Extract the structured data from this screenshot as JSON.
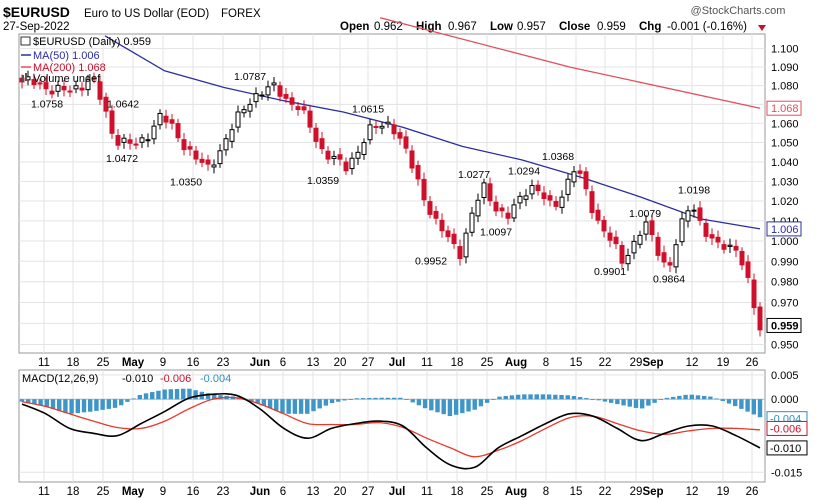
{
  "header": {
    "symbol": "$EURUSD",
    "title": "Euro to US Dollar (EOD)",
    "exchange": "FOREX",
    "date": "27-Sep-2022",
    "watermark": "@StockCharts.com",
    "open_label": "Open",
    "open": "0.962",
    "high_label": "High",
    "high": "0.967",
    "low_label": "Low",
    "low": "0.957",
    "close_label": "Close",
    "close": "0.959",
    "chg_label": "Chg",
    "chg": "-0.001 (-0.16%)"
  },
  "legend": {
    "price": "$EURUSD (Daily) 0.959",
    "ma50": "MA(50) 1.006",
    "ma200": "MA(200) 1.068",
    "volume": "Volume undef"
  },
  "macd_legend": {
    "label": "MACD(12,26,9)",
    "macd_value": "-0.010",
    "signal_value": "-0.006",
    "hist_value": "-0.004"
  },
  "colors": {
    "up": "#000000",
    "down": "#d0102a",
    "ma50": "#2b2f9e",
    "ma200": "#e0505a",
    "macd": "#000000",
    "signal": "#e8392b",
    "histogram": "#3d95c8",
    "grid": "#e3e3e3",
    "text_red": "#c4122e",
    "text_blue": "#2b2f9e",
    "text_cyan": "#2f8fc0"
  },
  "chart_data": [
    {
      "type": "candlestick",
      "title": "$EURUSD (Daily)",
      "ylim": [
        0.946,
        1.108
      ],
      "y_scale": "log",
      "y_ticks": [
        1.1,
        1.09,
        1.08,
        1.07,
        1.06,
        1.05,
        1.04,
        1.03,
        1.02,
        1.01,
        1.0,
        0.99,
        0.98,
        0.97,
        0.96,
        0.95
      ],
      "y_tick_labels": [
        "1.100",
        "1.090",
        "1.080",
        "1.070",
        "1.060",
        "1.050",
        "1.040",
        "1.030",
        "1.020",
        "1.010",
        "1.000",
        "0.990",
        "0.980",
        "0.970",
        "0.960",
        "0.950"
      ],
      "x_ticks": [
        {
          "label": "11",
          "bold": false
        },
        {
          "label": "18",
          "bold": false
        },
        {
          "label": "25",
          "bold": false
        },
        {
          "label": "May",
          "bold": true
        },
        {
          "label": "9",
          "bold": false
        },
        {
          "label": "16",
          "bold": false
        },
        {
          "label": "23",
          "bold": false
        },
        {
          "label": "Jun",
          "bold": true
        },
        {
          "label": "6",
          "bold": false
        },
        {
          "label": "13",
          "bold": false
        },
        {
          "label": "20",
          "bold": false
        },
        {
          "label": "27",
          "bold": false
        },
        {
          "label": "Jul",
          "bold": true
        },
        {
          "label": "11",
          "bold": false
        },
        {
          "label": "18",
          "bold": false
        },
        {
          "label": "25",
          "bold": false
        },
        {
          "label": "Aug",
          "bold": true
        },
        {
          "label": "8",
          "bold": false
        },
        {
          "label": "15",
          "bold": false
        },
        {
          "label": "22",
          "bold": false
        },
        {
          "label": "29",
          "bold": false
        },
        {
          "label": "Sep",
          "bold": true
        },
        {
          "label": "12",
          "bold": false
        },
        {
          "label": "19",
          "bold": false
        },
        {
          "label": "26",
          "bold": false
        }
      ],
      "annotations": [
        {
          "text": "1.0758",
          "value": 1.0758,
          "pos": "below"
        },
        {
          "text": "1.0642",
          "value": 1.0642,
          "pos": "above"
        },
        {
          "text": "1.0472",
          "value": 1.0472,
          "pos": "below"
        },
        {
          "text": "1.0350",
          "value": 1.035,
          "pos": "below"
        },
        {
          "text": "1.0787",
          "value": 1.0787,
          "pos": "above"
        },
        {
          "text": "1.0359",
          "value": 1.0359,
          "pos": "below"
        },
        {
          "text": "1.0615",
          "value": 1.0615,
          "pos": "above"
        },
        {
          "text": "1.0277",
          "value": 1.0277,
          "pos": "above"
        },
        {
          "text": "1.0294",
          "value": 1.0294,
          "pos": "above"
        },
        {
          "text": "1.0368",
          "value": 1.0368,
          "pos": "above"
        },
        {
          "text": "1.0097",
          "value": 1.0097,
          "pos": "below"
        },
        {
          "text": "0.9952",
          "value": 0.9952,
          "pos": "below"
        },
        {
          "text": "1.0079",
          "value": 1.0079,
          "pos": "above"
        },
        {
          "text": "0.9901",
          "value": 0.9901,
          "pos": "below"
        },
        {
          "text": "1.0198",
          "value": 1.0198,
          "pos": "above"
        },
        {
          "text": "0.9864",
          "value": 0.9864,
          "pos": "below"
        }
      ],
      "right_labels": [
        {
          "text": "1.068",
          "value": 1.068,
          "color": "#e0505a"
        },
        {
          "text": "1.006",
          "value": 1.006,
          "color": "#2b2f9e"
        },
        {
          "text": "0.959",
          "value": 0.959,
          "color": "#000000"
        }
      ],
      "ma50_anchors": [
        {
          "value": 1.107
        },
        {
          "value": 1.088
        },
        {
          "value": 1.079
        },
        {
          "value": 1.072
        },
        {
          "value": 1.066
        },
        {
          "value": 1.058
        },
        {
          "value": 1.048
        },
        {
          "value": 1.041
        },
        {
          "value": 1.032
        },
        {
          "value": 1.022
        },
        {
          "value": 1.011
        },
        {
          "value": 1.006
        }
      ],
      "ma200_anchors": [
        {
          "value": 1.117
        },
        {
          "value": 1.09
        },
        {
          "value": 1.068
        }
      ],
      "price_pivots": [
        {
          "value": 1.082
        },
        {
          "value": 1.08
        },
        {
          "value": 1.0758
        },
        {
          "value": 1.085
        },
        {
          "value": 1.053
        },
        {
          "value": 1.0472
        },
        {
          "value": 1.0642
        },
        {
          "value": 1.05
        },
        {
          "value": 1.035
        },
        {
          "value": 1.055
        },
        {
          "value": 1.075
        },
        {
          "value": 1.0787
        },
        {
          "value": 1.068
        },
        {
          "value": 1.047
        },
        {
          "value": 1.0359
        },
        {
          "value": 1.055
        },
        {
          "value": 1.0615
        },
        {
          "value": 1.035
        },
        {
          "value": 1.007
        },
        {
          "value": 0.9952
        },
        {
          "value": 1.0277
        },
        {
          "value": 1.0097
        },
        {
          "value": 1.0294
        },
        {
          "value": 1.016
        },
        {
          "value": 1.0368
        },
        {
          "value": 1.01
        },
        {
          "value": 0.9901
        },
        {
          "value": 1.0079
        },
        {
          "value": 0.9864
        },
        {
          "value": 1.0198
        },
        {
          "value": 0.997
        },
        {
          "value": 0.998
        },
        {
          "value": 0.957
        }
      ]
    },
    {
      "type": "line",
      "title": "MACD(12,26,9)",
      "ylim": [
        -0.017,
        0.006
      ],
      "y_ticks": [
        0.005,
        0.0,
        -0.015
      ],
      "y_tick_labels": [
        "0.005",
        "0.000",
        "-0.015"
      ],
      "right_labels": [
        {
          "text": "-0.004",
          "value": -0.004,
          "color": "#2f8fc0"
        },
        {
          "text": "-0.006",
          "value": -0.006,
          "color": "#c4122e"
        },
        {
          "text": "-0.010",
          "value": -0.01,
          "color": "#000000"
        }
      ],
      "series": [
        {
          "name": "MACD",
          "values": [
            -0.001,
            -0.003,
            -0.006,
            -0.007,
            -0.0075,
            -0.005,
            -0.0025,
            0.0002,
            0.001,
            0.0008,
            -0.002,
            -0.006,
            -0.008,
            -0.006,
            -0.005,
            -0.0045,
            -0.0055,
            -0.01,
            -0.0135,
            -0.014,
            -0.01,
            -0.0075,
            -0.005,
            -0.003,
            -0.0035,
            -0.006,
            -0.0085,
            -0.007,
            -0.0055,
            -0.0055,
            -0.0075,
            -0.01
          ]
        },
        {
          "name": "Signal",
          "values": [
            -0.0005,
            -0.0015,
            -0.003,
            -0.0045,
            -0.0058,
            -0.006,
            -0.0045,
            -0.002,
            0.0,
            0.0003,
            -0.001,
            -0.003,
            -0.005,
            -0.0052,
            -0.0052,
            -0.0048,
            -0.0058,
            -0.008,
            -0.01,
            -0.0118,
            -0.0105,
            -0.0085,
            -0.006,
            -0.0038,
            -0.0035,
            -0.005,
            -0.0065,
            -0.0072,
            -0.0065,
            -0.006,
            -0.006,
            -0.0063
          ]
        }
      ]
    }
  ]
}
